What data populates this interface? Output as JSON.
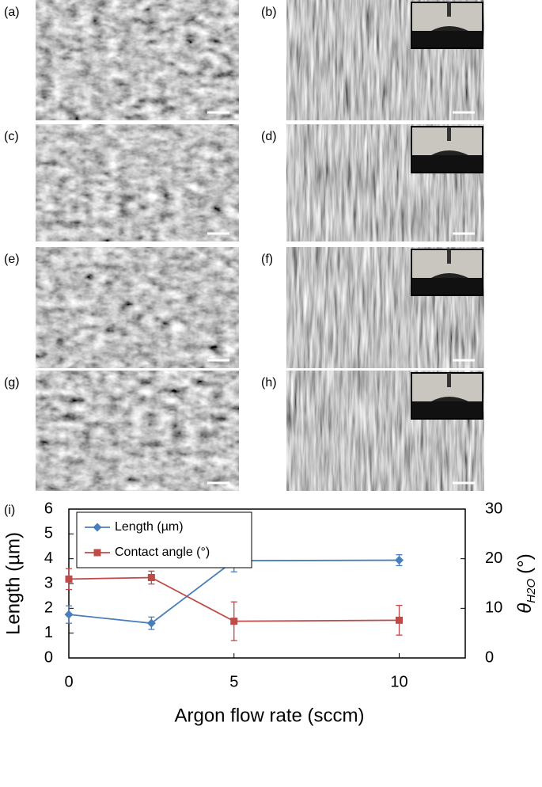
{
  "panels": [
    "(a)",
    "(b)",
    "(c)",
    "(d)",
    "(e)",
    "(f)",
    "(g)",
    "(h)"
  ],
  "chart_data": {
    "type": "line",
    "panel_label": "(i)",
    "x_label": "Argon flow rate (sccm)",
    "y_label": "Length (µm)",
    "y2_label": "θ",
    "y2_label_sub": "H2O",
    "y2_label_unit": "(°)",
    "x": [
      0,
      2.5,
      5,
      10
    ],
    "xlim": [
      0,
      12
    ],
    "xticks": [
      0,
      5,
      10
    ],
    "ylim": [
      0,
      6
    ],
    "yticks": [
      0,
      1,
      2,
      3,
      4,
      5,
      6
    ],
    "y2lim": [
      0,
      30
    ],
    "y2ticks": [
      0,
      10,
      20,
      30
    ],
    "legend": "upper left",
    "series": [
      {
        "name": "Length (µm)",
        "color": "#4a7ebb",
        "marker": "diamond",
        "values": [
          1.75,
          1.4,
          3.92,
          3.94
        ],
        "errors": [
          0.35,
          0.25,
          0.45,
          0.22
        ]
      },
      {
        "name": "Contact angle (°)",
        "color": "#be4b48",
        "marker": "square",
        "axis": "y2",
        "values": [
          15.9,
          16.2,
          7.4,
          7.6
        ],
        "errors": [
          2.1,
          1.3,
          3.9,
          3.0
        ]
      }
    ]
  }
}
